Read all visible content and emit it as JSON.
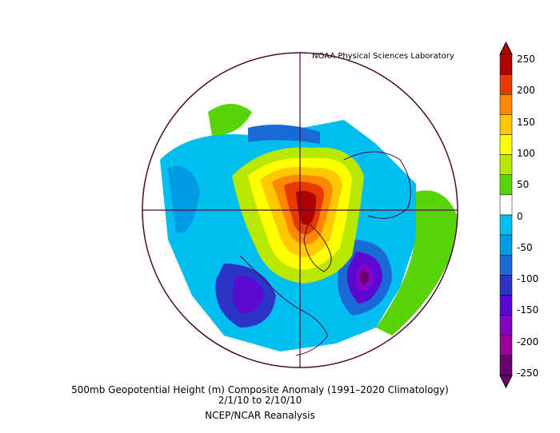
{
  "header": {
    "credit": "NOAA Physical Sciences Laboratory"
  },
  "caption": {
    "line1": "500mb Geopotential Height (m) Composite Anomaly (1991–2020 Climatology)",
    "line2": "2/1/10   to 2/10/10",
    "line3": "NCEP/NCAR Reanalysis"
  },
  "colorbar": {
    "labels": [
      "250",
      "200",
      "150",
      "100",
      "50",
      "0",
      "-50",
      "-100",
      "-150",
      "-200",
      "-250"
    ],
    "colors": [
      "#b10000",
      "#e83a00",
      "#ff8800",
      "#ffc800",
      "#ffff00",
      "#b8e800",
      "#58d40a",
      "#ffffff",
      "#00bff0",
      "#009be4",
      "#1a6ad6",
      "#2c34c8",
      "#5a0ad0",
      "#8800c4",
      "#9c009c",
      "#6a0070"
    ]
  }
}
